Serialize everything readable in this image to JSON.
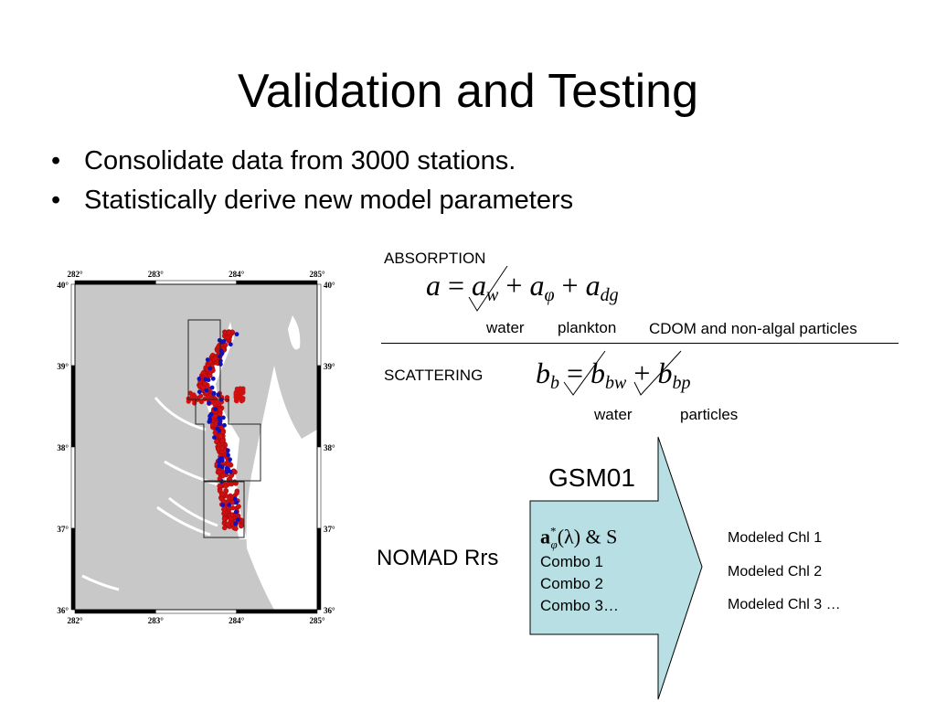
{
  "title": "Validation and Testing",
  "bullets": [
    "Consolidate data from 3000 stations.",
    "Statistically derive new model parameters"
  ],
  "map": {
    "lon_ticks": [
      "282°",
      "283°",
      "284°",
      "285°"
    ],
    "lat_ticks": [
      "40°",
      "39°",
      "38°",
      "37°",
      "36°"
    ],
    "colors": {
      "land": "#c8c8c8",
      "water": "#ffffff",
      "station_red": "#d01010",
      "station_blue": "#1010c0"
    }
  },
  "absorption": {
    "heading": "ABSORPTION",
    "equation": {
      "lhs": "a",
      "eq": "=",
      "t1": "a",
      "s1": "w",
      "plus1": "+",
      "t2": "a",
      "s2": "φ",
      "plus2": "+",
      "t3": "a",
      "s3": "dg"
    },
    "labels": [
      "water",
      "plankton",
      "CDOM and non-algal particles"
    ]
  },
  "scattering": {
    "heading": "SCATTERING",
    "equation": {
      "lhs": "b",
      "lhs_sub": "b",
      "eq": "=",
      "t1": "b",
      "s1": "bw",
      "plus1": "+",
      "t2": "b",
      "s2": "bp"
    },
    "labels": [
      "water",
      "particles"
    ]
  },
  "flow": {
    "model": "GSM01",
    "input": "NOMAD Rrs",
    "params_a": "a",
    "params_sub": "φ",
    "params_sup": "*",
    "params_rest": "(λ) & S",
    "combos": [
      "Combo 1",
      "Combo 2",
      "Combo 3…"
    ],
    "outputs": [
      "Modeled Chl 1",
      "Modeled Chl 2",
      "Modeled Chl 3 …"
    ],
    "arrow_color": "#b8e0e4"
  }
}
